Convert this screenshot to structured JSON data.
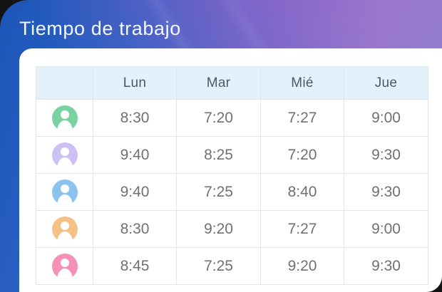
{
  "window": {
    "title": "Tiempo de trabajo"
  },
  "theme": {
    "gradient_start": "#1c55b8",
    "gradient_mid": "#5e6aca",
    "gradient_end": "#8a7dc9",
    "magenta_tint": "#d557c5",
    "panel_bg": "#ffffff",
    "header_row_bg": "#e2f1fa",
    "table_border": "#e2e5e9",
    "day_text_color": "#4d5966",
    "time_text_color": "#6e7174",
    "title_text_color": "#f4f8ff"
  },
  "table": {
    "columns": [
      "",
      "Lun",
      "Mar",
      "Mié",
      "Jue"
    ],
    "rows": [
      {
        "avatar_icon": "user-icon",
        "avatar_color_name": "green",
        "avatar_color": "#7ad2a2",
        "times": [
          "8:30",
          "7:20",
          "7:27",
          "9:00"
        ]
      },
      {
        "avatar_icon": "user-icon",
        "avatar_color_name": "lavender",
        "avatar_color": "#cdc0f3",
        "times": [
          "9:40",
          "8:25",
          "7:20",
          "9:30"
        ]
      },
      {
        "avatar_icon": "user-icon",
        "avatar_color_name": "blue",
        "avatar_color": "#8cc2ee",
        "times": [
          "9:40",
          "7:25",
          "8:40",
          "9:30"
        ]
      },
      {
        "avatar_icon": "user-icon",
        "avatar_color_name": "orange",
        "avatar_color": "#f6c187",
        "times": [
          "8:30",
          "9:20",
          "7:27",
          "9:00"
        ]
      },
      {
        "avatar_icon": "user-icon",
        "avatar_color_name": "pink",
        "avatar_color": "#f590b6",
        "times": [
          "8:45",
          "7:25",
          "9:20",
          "9:30"
        ]
      }
    ]
  }
}
